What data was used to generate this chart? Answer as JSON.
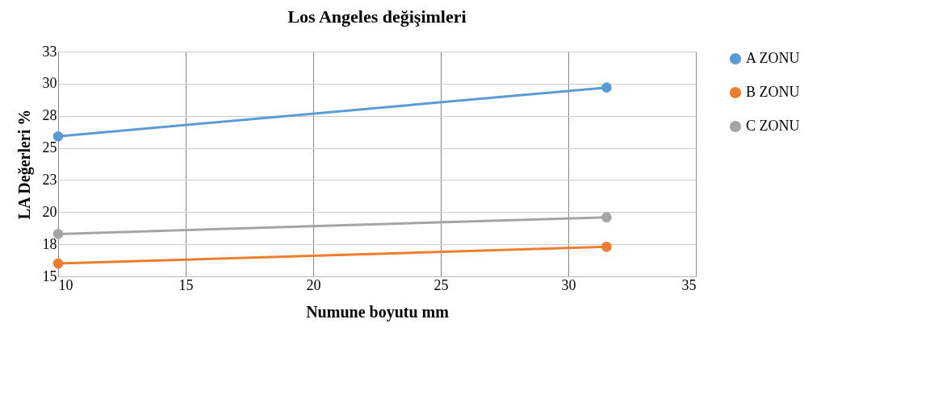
{
  "chart_data": {
    "type": "line",
    "title": "Los Angeles değişimleri",
    "xlabel": "Numune boyutu mm",
    "ylabel": "LA Değerleri %",
    "x": [
      10,
      31.5
    ],
    "series": [
      {
        "name": "A ZONU",
        "color": "#5b9bd5",
        "values": [
          25.9,
          29.7
        ]
      },
      {
        "name": "B ZONU",
        "color": "#ed7d31",
        "values": [
          16.0,
          17.3
        ]
      },
      {
        "name": "C ZONU",
        "color": "#a5a5a5",
        "values": [
          18.3,
          19.6
        ]
      }
    ],
    "xlim": [
      10,
      35
    ],
    "xticks": [
      10,
      15,
      20,
      25,
      30,
      35
    ],
    "ylim": [
      15,
      32.5
    ],
    "yticks": [
      15,
      {
        "value": 17.5,
        "label": "18"
      },
      20,
      {
        "value": 22.5,
        "label": "23"
      },
      25,
      {
        "value": 27.5,
        "label": "28"
      },
      30,
      {
        "value": 32.5,
        "label": "33"
      }
    ],
    "grid": true,
    "legend": "right",
    "marker": "circle",
    "line_style": "solid"
  }
}
